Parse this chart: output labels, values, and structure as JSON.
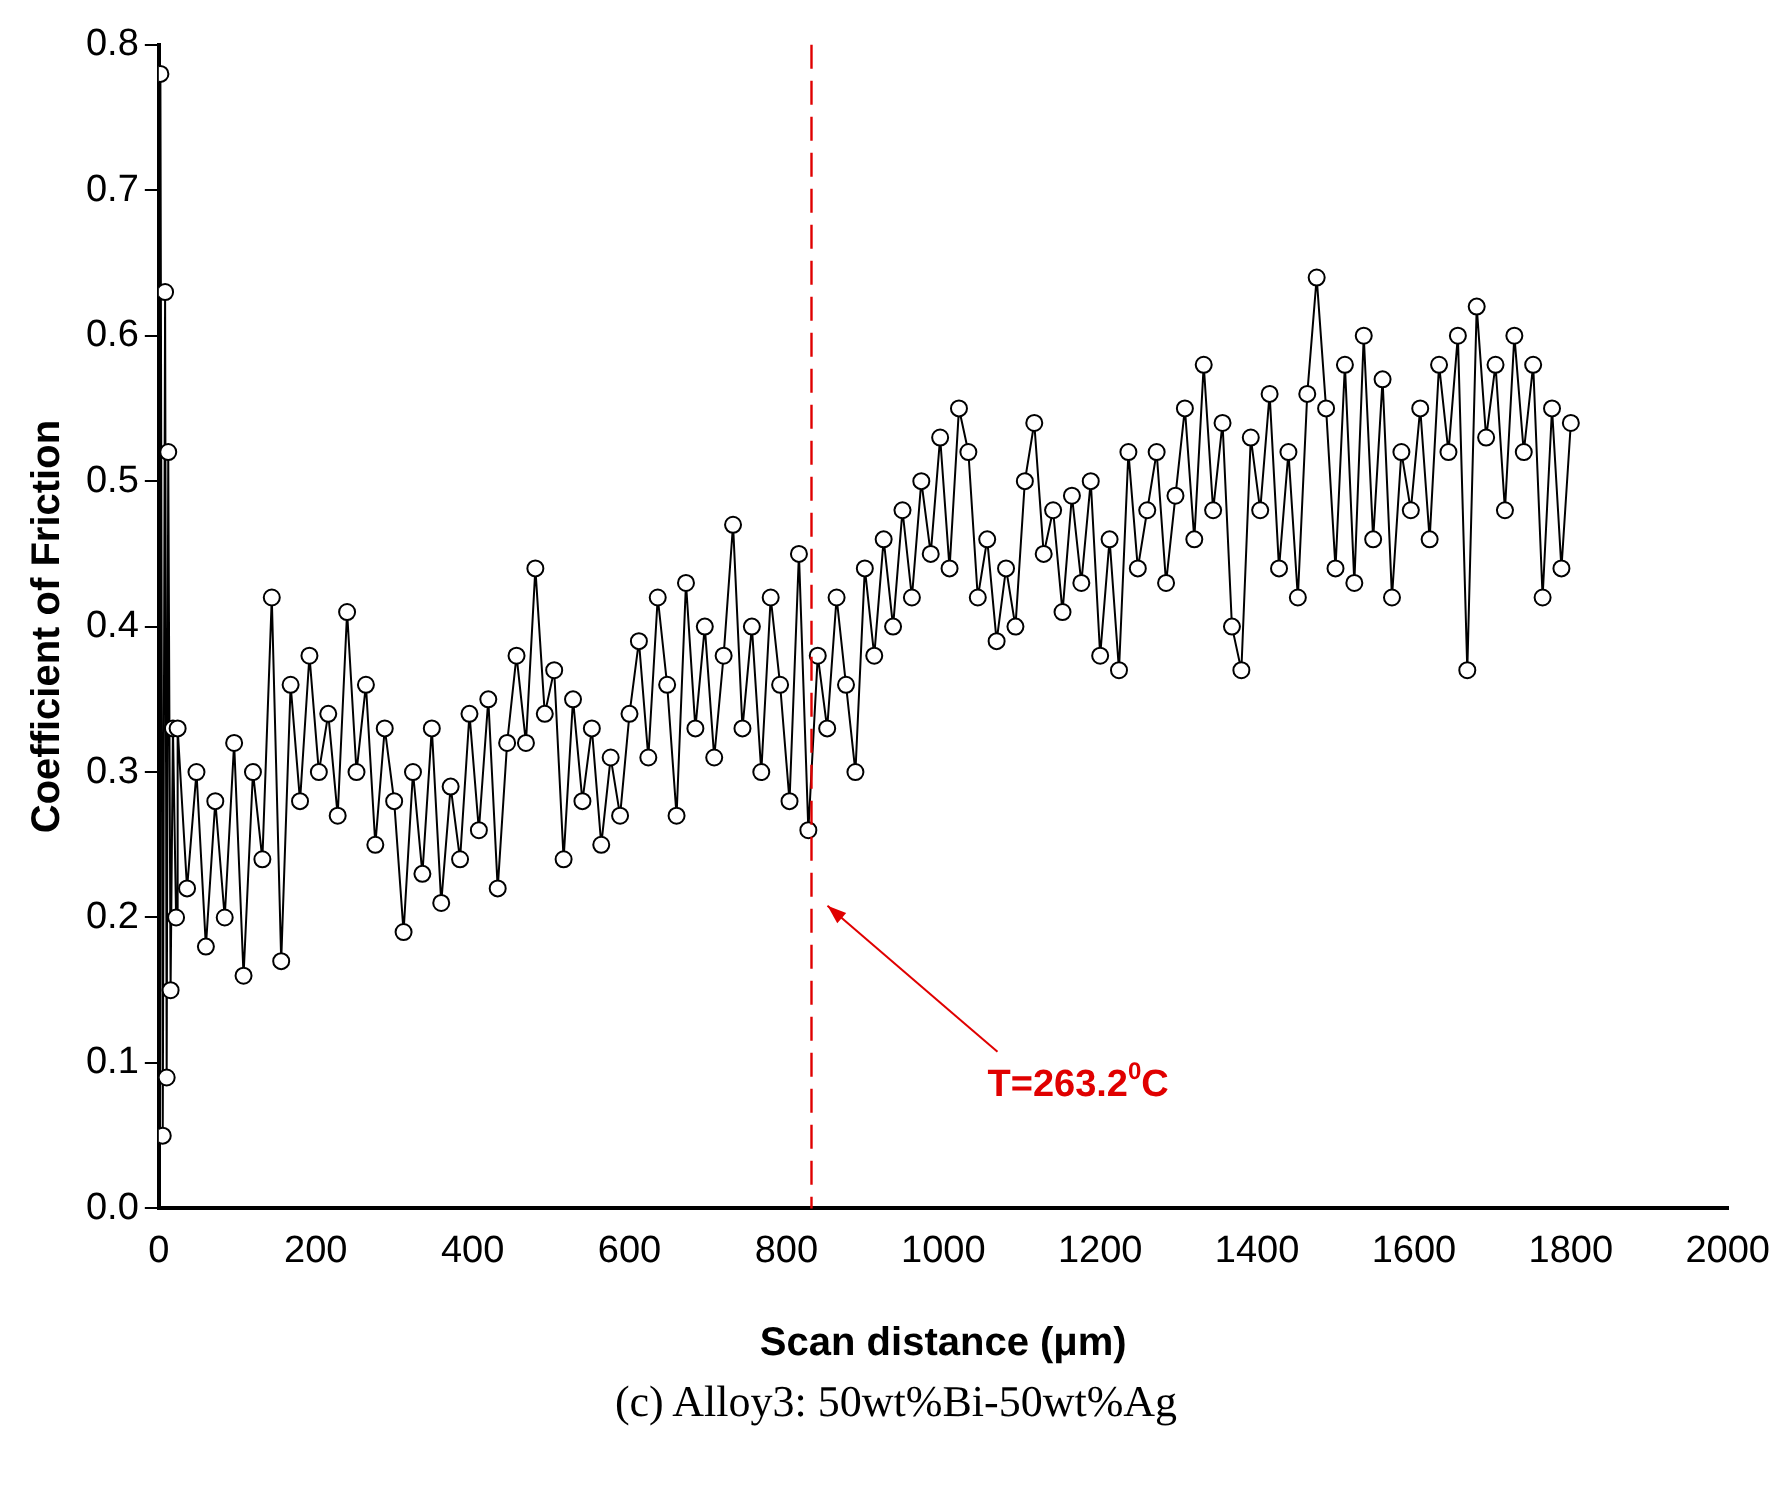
{
  "chart_data": {
    "type": "line",
    "xlabel": "Scan distance (μm)",
    "ylabel": "Coefficient of Friction",
    "marker": "circle",
    "line_style": "solid",
    "xlim": [
      0,
      2000
    ],
    "xticks": [
      0,
      200,
      400,
      600,
      800,
      1000,
      1200,
      1400,
      1600,
      1800,
      2000
    ],
    "ylim": [
      0,
      0.8
    ],
    "yticks": [
      {
        "value": 0,
        "label": "0.0"
      },
      {
        "value": 0.1,
        "label": "0.1"
      },
      {
        "value": 0.2,
        "label": "0.2"
      },
      {
        "value": 0.3,
        "label": "0.3"
      },
      {
        "value": 0.4,
        "label": "0.4"
      },
      {
        "value": 0.5,
        "label": "0.5"
      },
      {
        "value": 0.6,
        "label": "0.6"
      },
      {
        "value": 0.7,
        "label": "0.7"
      },
      {
        "value": 0.8,
        "label": "0.8"
      }
    ],
    "grid": false,
    "legend": false,
    "ref_lines": [
      {
        "axis": "x",
        "value": 832,
        "color": "#e00000",
        "line_style": "dashed"
      }
    ],
    "annotations": [
      "T=263.2$^{0}$C",
      "(c) Alloy3: 50wt%Bi-50wt%Ag"
    ],
    "series": [
      {
        "color": "#000000",
        "x": [
          2,
          5,
          8,
          10,
          12,
          15,
          18,
          22,
          24,
          36,
          48,
          60,
          72,
          84,
          96,
          108,
          120,
          132,
          144,
          156,
          168,
          180,
          192,
          204,
          216,
          228,
          240,
          252,
          264,
          276,
          288,
          300,
          312,
          324,
          336,
          348,
          360,
          372,
          384,
          396,
          408,
          420,
          432,
          444,
          456,
          468,
          480,
          492,
          504,
          516,
          528,
          540,
          552,
          564,
          576,
          588,
          600,
          612,
          624,
          636,
          648,
          660,
          672,
          684,
          696,
          708,
          720,
          732,
          744,
          756,
          768,
          780,
          792,
          804,
          816,
          828,
          840,
          852,
          864,
          876,
          888,
          900,
          912,
          924,
          936,
          948,
          960,
          972,
          984,
          996,
          1008,
          1020,
          1032,
          1044,
          1056,
          1068,
          1080,
          1092,
          1104,
          1116,
          1128,
          1140,
          1152,
          1164,
          1176,
          1188,
          1200,
          1212,
          1224,
          1236,
          1248,
          1260,
          1272,
          1284,
          1296,
          1308,
          1320,
          1332,
          1344,
          1356,
          1368,
          1380,
          1392,
          1404,
          1416,
          1428,
          1440,
          1452,
          1464,
          1476,
          1488,
          1500,
          1512,
          1524,
          1536,
          1548,
          1560,
          1572,
          1584,
          1596,
          1608,
          1620,
          1632,
          1644,
          1656,
          1668,
          1680,
          1692,
          1704,
          1716,
          1728,
          1740,
          1752,
          1764,
          1776,
          1788,
          1800
        ],
        "values": [
          0.78,
          0.05,
          0.63,
          0.09,
          0.52,
          0.15,
          0.33,
          0.2,
          0.33,
          0.22,
          0.3,
          0.18,
          0.28,
          0.2,
          0.32,
          0.16,
          0.3,
          0.24,
          0.42,
          0.17,
          0.36,
          0.28,
          0.38,
          0.3,
          0.34,
          0.27,
          0.41,
          0.3,
          0.36,
          0.25,
          0.33,
          0.28,
          0.19,
          0.3,
          0.23,
          0.33,
          0.21,
          0.29,
          0.24,
          0.34,
          0.26,
          0.35,
          0.22,
          0.32,
          0.38,
          0.32,
          0.44,
          0.34,
          0.37,
          0.24,
          0.35,
          0.28,
          0.33,
          0.25,
          0.31,
          0.27,
          0.34,
          0.39,
          0.31,
          0.42,
          0.36,
          0.27,
          0.43,
          0.33,
          0.4,
          0.31,
          0.38,
          0.47,
          0.33,
          0.4,
          0.3,
          0.42,
          0.36,
          0.28,
          0.45,
          0.26,
          0.38,
          0.33,
          0.42,
          0.36,
          0.3,
          0.44,
          0.38,
          0.46,
          0.4,
          0.48,
          0.42,
          0.5,
          0.45,
          0.53,
          0.44,
          0.55,
          0.52,
          0.42,
          0.46,
          0.39,
          0.44,
          0.4,
          0.5,
          0.54,
          0.45,
          0.48,
          0.41,
          0.49,
          0.43,
          0.5,
          0.38,
          0.46,
          0.37,
          0.52,
          0.44,
          0.48,
          0.52,
          0.43,
          0.49,
          0.55,
          0.46,
          0.58,
          0.48,
          0.54,
          0.4,
          0.37,
          0.53,
          0.48,
          0.56,
          0.44,
          0.52,
          0.42,
          0.56,
          0.64,
          0.55,
          0.44,
          0.58,
          0.43,
          0.6,
          0.46,
          0.57,
          0.42,
          0.52,
          0.48,
          0.55,
          0.46,
          0.58,
          0.52,
          0.6,
          0.37,
          0.62,
          0.53,
          0.58,
          0.48,
          0.6,
          0.52,
          0.58,
          0.42,
          0.55,
          0.44,
          0.54
        ]
      }
    ]
  }
}
